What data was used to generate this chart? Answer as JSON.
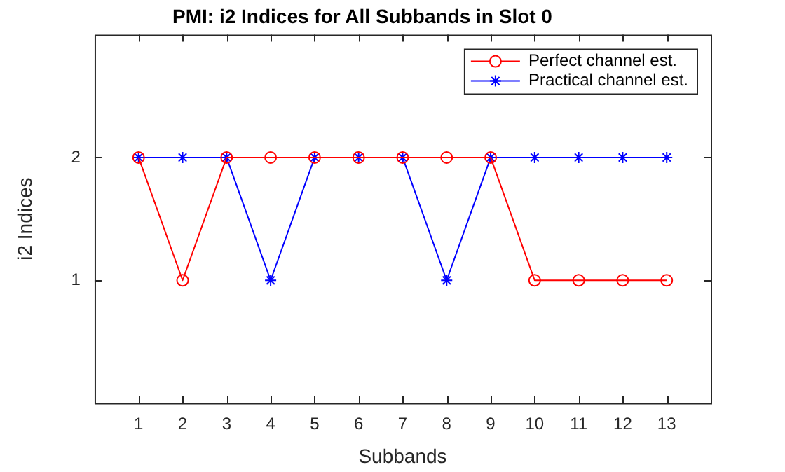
{
  "chart_data": {
    "type": "line",
    "title": "PMI: i2 Indices for All Subbands in Slot 0",
    "xlabel": "Subbands",
    "ylabel": "i2 Indices",
    "x": [
      1,
      2,
      3,
      4,
      5,
      6,
      7,
      8,
      9,
      10,
      11,
      12,
      13
    ],
    "series": [
      {
        "name": "Perfect channel est.",
        "color": "#ff0000",
        "marker": "circle",
        "values": [
          2,
          1,
          2,
          2,
          2,
          2,
          2,
          2,
          2,
          1,
          1,
          1,
          1
        ]
      },
      {
        "name": "Practical channel est.",
        "color": "#0000ff",
        "marker": "cross",
        "values": [
          2,
          2,
          2,
          1,
          2,
          2,
          2,
          1,
          2,
          2,
          2,
          2,
          2
        ]
      }
    ],
    "xlim": [
      0,
      14
    ],
    "xticks": [
      1,
      2,
      3,
      4,
      5,
      6,
      7,
      8,
      9,
      10,
      11,
      12,
      13
    ],
    "ylim": [
      0,
      3
    ],
    "yticks": [
      1,
      2
    ],
    "grid": false,
    "legend": "top right"
  }
}
